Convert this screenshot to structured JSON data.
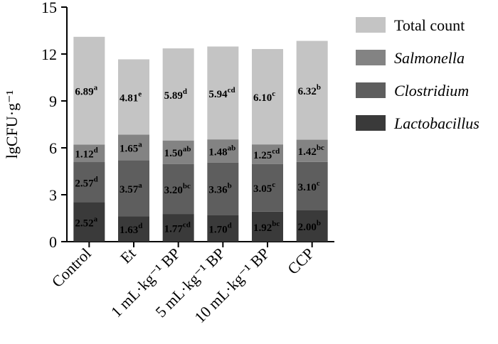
{
  "chart_data": {
    "type": "bar",
    "stacked": true,
    "categories": [
      "Control",
      "Et",
      "1 mL·kg⁻¹ BP",
      "5 mL·kg⁻¹ BP",
      "10 mL·kg⁻¹ BP",
      "CCP"
    ],
    "ylabel": "lgCFU·g⁻¹",
    "ylim": [
      0,
      15
    ],
    "yticks": [
      0,
      3,
      6,
      9,
      12,
      15
    ],
    "grid": false,
    "legend_position": "right",
    "series": [
      {
        "name": "Lactobacillus",
        "italic": true,
        "color": "#3a3a3a",
        "values": [
          2.52,
          1.63,
          1.77,
          1.7,
          1.92,
          2.0
        ],
        "letters": [
          "a",
          "d",
          "cd",
          "d",
          "bc",
          "b"
        ]
      },
      {
        "name": "Clostridium",
        "italic": true,
        "color": "#5e5e5e",
        "values": [
          2.57,
          3.57,
          3.2,
          3.36,
          3.05,
          3.1
        ],
        "letters": [
          "d",
          "a",
          "bc",
          "b",
          "c",
          "c"
        ]
      },
      {
        "name": "Salmonella",
        "italic": true,
        "color": "#838383",
        "values": [
          1.12,
          1.65,
          1.5,
          1.48,
          1.25,
          1.42
        ],
        "letters": [
          "d",
          "a",
          "ab",
          "ab",
          "cd",
          "bc"
        ]
      },
      {
        "name": "Total count",
        "italic": false,
        "color": "#c4c4c4",
        "values": [
          6.89,
          4.81,
          5.89,
          5.94,
          6.1,
          6.32
        ],
        "letters": [
          "a",
          "e",
          "d",
          "cd",
          "c",
          "b"
        ]
      }
    ],
    "legend_order": [
      "Total count",
      "Salmonella",
      "Clostridium",
      "Lactobacillus"
    ]
  }
}
